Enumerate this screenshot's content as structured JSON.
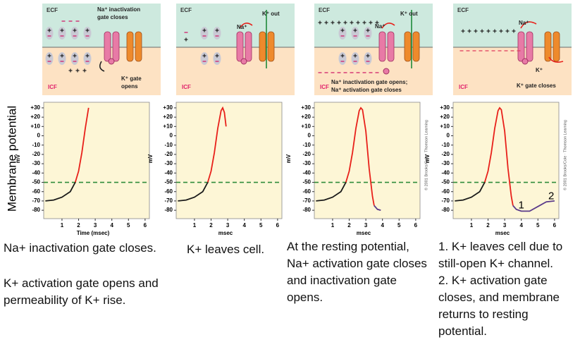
{
  "side_label": "Membrane potential",
  "diagrams": [
    {
      "ecf": "ECF",
      "icf": "ICF",
      "labels": [
        "Na⁺ inactivation",
        "gate closes",
        "K⁺ gate",
        "opens"
      ]
    },
    {
      "ecf": "ECF",
      "icf": "ICF",
      "labels": [
        "Na⁺",
        "K⁺ out"
      ]
    },
    {
      "ecf": "ECF",
      "icf": "ICF",
      "labels": [
        "Na⁺",
        "K⁺ out",
        "Na⁺ inactivation gate opens;",
        "Na⁺ activation gate closes"
      ]
    },
    {
      "ecf": "ECF",
      "icf": "ICF",
      "labels": [
        "Na⁺",
        "K⁺",
        "K⁺ gate closes"
      ]
    }
  ],
  "chart_data": [
    {
      "type": "line",
      "x_label": "Time (msec)",
      "y_label": "mV",
      "x": [
        0,
        0.5,
        1,
        1.5,
        1.8,
        2,
        2.2,
        2.4,
        2.6
      ],
      "series": [
        {
          "color": "#1a1a1a",
          "values": [
            -70,
            -69,
            -66,
            -60,
            -50,
            null,
            null,
            null,
            null
          ]
        },
        {
          "color": "#e8201a",
          "values": [
            null,
            null,
            null,
            null,
            -50,
            -38,
            -18,
            8,
            30
          ]
        }
      ],
      "threshold": -50,
      "threshold_color": "#2e8b3a",
      "xlim": [
        -0.1,
        6.26
      ],
      "ylim": [
        -89,
        36
      ],
      "xticks": [
        1,
        2,
        3,
        4,
        5,
        6
      ],
      "yticks": [
        {
          "value": 30,
          "label": "+30"
        },
        {
          "value": 20,
          "label": "+20"
        },
        {
          "value": 10,
          "label": "+10"
        },
        0,
        -10,
        -20,
        -30,
        -40,
        -50,
        -60,
        -70,
        -80
      ]
    },
    {
      "type": "line",
      "x_label": "msec",
      "y_label": "mV",
      "x": [
        0,
        0.5,
        1,
        1.5,
        1.8,
        2,
        2.2,
        2.4,
        2.6,
        2.7,
        2.8,
        2.9
      ],
      "series": [
        {
          "color": "#1a1a1a",
          "values": [
            -70,
            -69,
            -66,
            -60,
            -50,
            null,
            null,
            null,
            null,
            null,
            null,
            null
          ]
        },
        {
          "color": "#e8201a",
          "values": [
            null,
            null,
            null,
            null,
            -50,
            -38,
            -18,
            8,
            27,
            30,
            25,
            10
          ]
        }
      ],
      "threshold": -50,
      "threshold_color": "#2e8b3a",
      "xlim": [
        -0.1,
        6.26
      ],
      "ylim": [
        -89,
        36
      ],
      "xticks": [
        1,
        2,
        3,
        4,
        5,
        6
      ],
      "yticks": [
        {
          "value": 30,
          "label": "+30"
        },
        {
          "value": 20,
          "label": "+20"
        },
        {
          "value": 10,
          "label": "+10"
        },
        0,
        -10,
        -20,
        -30,
        -40,
        -50,
        -60,
        -70,
        -80
      ]
    },
    {
      "type": "line",
      "x_label": "msec",
      "y_label": "mV",
      "credit": "© 2001 Brooks/Cole · Thomson Learning",
      "x": [
        0,
        0.5,
        1,
        1.5,
        1.8,
        2,
        2.2,
        2.4,
        2.6,
        2.7,
        2.8,
        3,
        3.2,
        3.4,
        3.5,
        3.7,
        3.9
      ],
      "series": [
        {
          "color": "#1a1a1a",
          "values": [
            -70,
            -69,
            -66,
            -60,
            -50,
            null,
            null,
            null,
            null,
            null,
            null,
            null,
            null,
            null,
            null,
            null,
            null
          ]
        },
        {
          "color": "#e8201a",
          "values": [
            null,
            null,
            null,
            null,
            -50,
            -38,
            -18,
            8,
            27,
            30,
            28,
            5,
            -35,
            -65,
            -75,
            null,
            null
          ]
        },
        {
          "color": "#5a3a8a",
          "values": [
            null,
            null,
            null,
            null,
            null,
            null,
            null,
            null,
            null,
            null,
            null,
            null,
            null,
            null,
            -75,
            -79,
            -80
          ]
        }
      ],
      "threshold": -50,
      "threshold_color": "#2e8b3a",
      "xlim": [
        -0.1,
        6.26
      ],
      "ylim": [
        -89,
        36
      ],
      "xticks": [
        1,
        2,
        3,
        4,
        5,
        6
      ],
      "yticks": [
        {
          "value": 30,
          "label": "+30"
        },
        {
          "value": 20,
          "label": "+20"
        },
        {
          "value": 10,
          "label": "+10"
        },
        0,
        -10,
        -20,
        -30,
        -40,
        -50,
        -60,
        -70,
        -80
      ]
    },
    {
      "type": "line",
      "x_label": "msec",
      "y_label": "mV",
      "credit": "© 2001 Brooks/Cole · Thomson Learning",
      "x": [
        0,
        0.5,
        1,
        1.5,
        1.8,
        2,
        2.2,
        2.4,
        2.6,
        2.7,
        2.8,
        3,
        3.2,
        3.4,
        3.5,
        3.7,
        4,
        4.5,
        5,
        5.5,
        6
      ],
      "series": [
        {
          "color": "#1a1a1a",
          "values": [
            -70,
            -69,
            -66,
            -60,
            -50,
            null,
            null,
            null,
            null,
            null,
            null,
            null,
            null,
            null,
            null,
            null,
            null,
            null,
            null,
            null,
            null
          ]
        },
        {
          "color": "#e8201a",
          "values": [
            null,
            null,
            null,
            null,
            -50,
            -38,
            -18,
            8,
            27,
            30,
            28,
            5,
            -35,
            -65,
            -75,
            null,
            null,
            null,
            null,
            null,
            null
          ]
        },
        {
          "color": "#5a3a8a",
          "values": [
            null,
            null,
            null,
            null,
            null,
            null,
            null,
            null,
            null,
            null,
            null,
            null,
            null,
            null,
            -75,
            -79,
            -81,
            -81,
            -76,
            -71,
            -70
          ]
        }
      ],
      "annotations": [
        {
          "text": "1",
          "x": 4,
          "y": -75
        },
        {
          "text": "2",
          "x": 5.8,
          "y": -65
        }
      ],
      "threshold": -50,
      "threshold_color": "#2e8b3a",
      "xlim": [
        -0.1,
        6.26
      ],
      "ylim": [
        -89,
        36
      ],
      "xticks": [
        1,
        2,
        3,
        4,
        5,
        6
      ],
      "yticks": [
        {
          "value": 30,
          "label": "+30"
        },
        {
          "value": 20,
          "label": "+20"
        },
        {
          "value": 10,
          "label": "+10"
        },
        0,
        -10,
        -20,
        -30,
        -40,
        -50,
        -60,
        -70,
        -80
      ]
    }
  ],
  "captions": [
    [
      "Na+ inactivation gate closes.",
      "K+ activation gate opens and permeability of K+ rise."
    ],
    [
      "K+ leaves cell."
    ],
    [
      "At the resting potential, Na+ activation gate closes and inactivation gate opens."
    ],
    [
      "1. K+ leaves cell due to still-open K+ channel.",
      "2. K+ activation gate closes, and membrane returns to resting potential."
    ]
  ]
}
